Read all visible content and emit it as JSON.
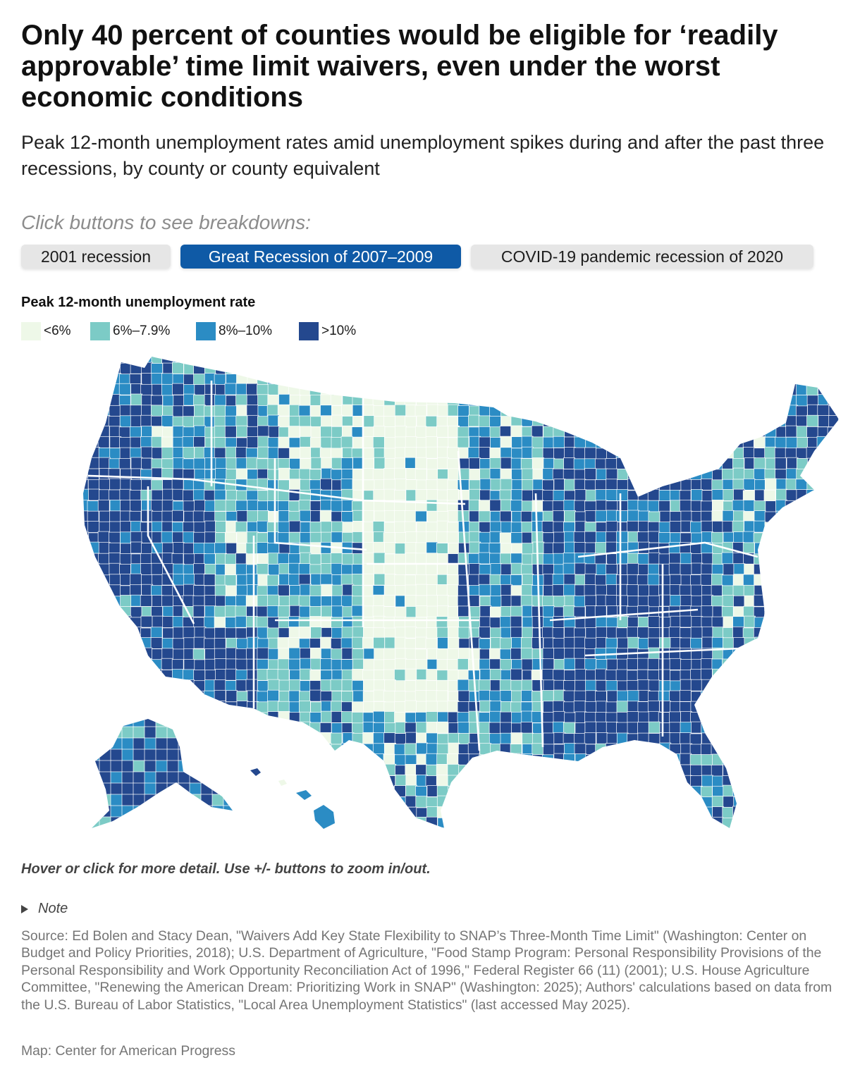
{
  "header": {
    "title": "Only 40 percent of counties would be eligible for ‘readily approvable’ time limit waivers, even under the worst economic conditions",
    "subtitle": "Peak 12-month unemployment rates amid unemployment spikes during and after the past three recessions, by county or county equivalent"
  },
  "controls": {
    "prompt": "Click buttons to see breakdowns:",
    "buttons": [
      {
        "label": "2001 recession",
        "selected": false
      },
      {
        "label": "Great Recession of 2007–2009",
        "selected": true
      },
      {
        "label": "COVID-19 pandemic recession of 2020",
        "selected": false
      }
    ]
  },
  "legend": {
    "title": "Peak 12-month unemployment rate",
    "items": [
      {
        "label": "<6%",
        "color": "#eef8e8"
      },
      {
        "label": "6%–7.9%",
        "color": "#7ccbc6"
      },
      {
        "label": "8%–10%",
        "color": "#2b8cc4"
      },
      {
        "label": ">10%",
        "color": "#24488e"
      }
    ]
  },
  "map": {
    "colors": {
      "very_low": "#eef8e8",
      "low": "#7ccbc6",
      "mid": "#2b8cc4",
      "high": "#24488e",
      "border": "#ffffff"
    },
    "regions": [
      {
        "region": "Pacific coast (WA, OR, CA)",
        "level": "high"
      },
      {
        "region": "Nevada and Arizona",
        "level": "high"
      },
      {
        "region": "Northern Rockies (ID, western MT)",
        "level": "mixed"
      },
      {
        "region": "Wyoming, Utah, Colorado",
        "level": "low-mid"
      },
      {
        "region": "New Mexico and west Texas",
        "level": "low-mid"
      },
      {
        "region": "Great Plains (ND, SD, NE, KS, OK)",
        "level": "very_low"
      },
      {
        "region": "Central and south Texas",
        "level": "mixed"
      },
      {
        "region": "Upper Midwest (MN, WI, IA)",
        "level": "mid"
      },
      {
        "region": "Michigan, Indiana, Ohio, Illinois",
        "level": "high"
      },
      {
        "region": "Kentucky, Tennessee",
        "level": "high"
      },
      {
        "region": "Deep South (AR, LA, MS, AL, GA)",
        "level": "high"
      },
      {
        "region": "Carolinas and Florida",
        "level": "high"
      },
      {
        "region": "Mid-Atlantic (PA, VA, MD)",
        "level": "mixed"
      },
      {
        "region": "New England",
        "level": "mixed"
      },
      {
        "region": "Maine",
        "level": "high"
      },
      {
        "region": "Alaska",
        "level": "high"
      },
      {
        "region": "Hawaii",
        "level": "mid"
      }
    ]
  },
  "footer": {
    "hint": "Hover or click for more detail. Use +/- buttons to zoom in/out.",
    "note_label": "Note",
    "source": "Source: Ed Bolen and Stacy Dean, \"Waivers Add Key State Flexibility to SNAP’s Three-Month Time Limit\" (Washington: Center on Budget and Policy Priorities, 2018); U.S. Department of Agriculture, \"Food Stamp Program: Personal Responsibility Provisions of the Personal Responsibility and Work Opportunity Reconciliation Act of 1996,\" Federal Register 66 (11) (2001); U.S. House Agriculture Committee, \"Renewing the American Dream: Prioritizing Work in SNAP\" (Washington: 2025); Authors' calculations based on data from the U.S. Bureau of Labor Statistics, \"Local Area Unemployment Statistics\" (last accessed May 2025).",
    "credit": "Map: Center for American Progress"
  }
}
